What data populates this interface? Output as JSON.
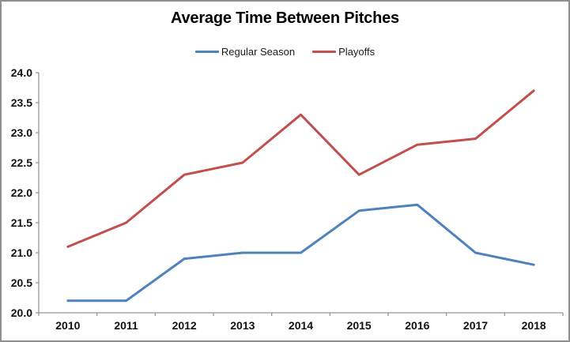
{
  "chart": {
    "title": "Average Time Between Pitches",
    "axis_color": "#969696",
    "border_color": "#8f8f8f",
    "label_color": "#111111"
  },
  "chart_data": {
    "type": "line",
    "title": "Average Time Between Pitches",
    "categories": [
      "2010",
      "2011",
      "2012",
      "2013",
      "2014",
      "2015",
      "2016",
      "2017",
      "2018"
    ],
    "series": [
      {
        "name": "Regular Season",
        "color": "#4F81BD",
        "values": [
          20.2,
          20.2,
          20.9,
          21.0,
          21.0,
          21.7,
          21.8,
          21.0,
          20.8
        ]
      },
      {
        "name": "Playoffs",
        "color": "#C0504D",
        "values": [
          21.1,
          21.5,
          22.3,
          22.5,
          23.3,
          22.3,
          22.8,
          22.9,
          23.7
        ]
      }
    ],
    "xlabel": "",
    "ylabel": "",
    "ylim": [
      20.0,
      24.0
    ],
    "ytick_step": 0.5,
    "ytick_labels": [
      "20.0",
      "20.5",
      "21.0",
      "21.5",
      "22.0",
      "22.5",
      "23.0",
      "23.5",
      "24.0"
    ],
    "grid": false,
    "legend_position": "top"
  }
}
